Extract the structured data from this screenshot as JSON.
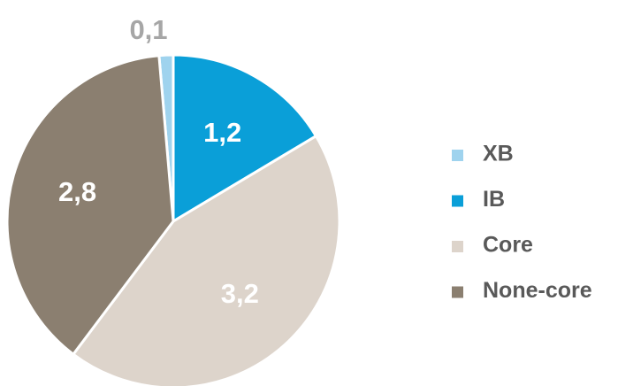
{
  "chart_data": {
    "type": "pie",
    "categories": [
      "XB",
      "IB",
      "Core",
      "None-core"
    ],
    "values": [
      0.1,
      1.2,
      3.2,
      2.8
    ],
    "value_labels": [
      "0,1",
      "1,2",
      "3,2",
      "2,8"
    ],
    "colors": [
      "#9fd3ee",
      "#0a9fd8",
      "#ddd4cb",
      "#8b7f70"
    ],
    "legend": "right"
  }
}
